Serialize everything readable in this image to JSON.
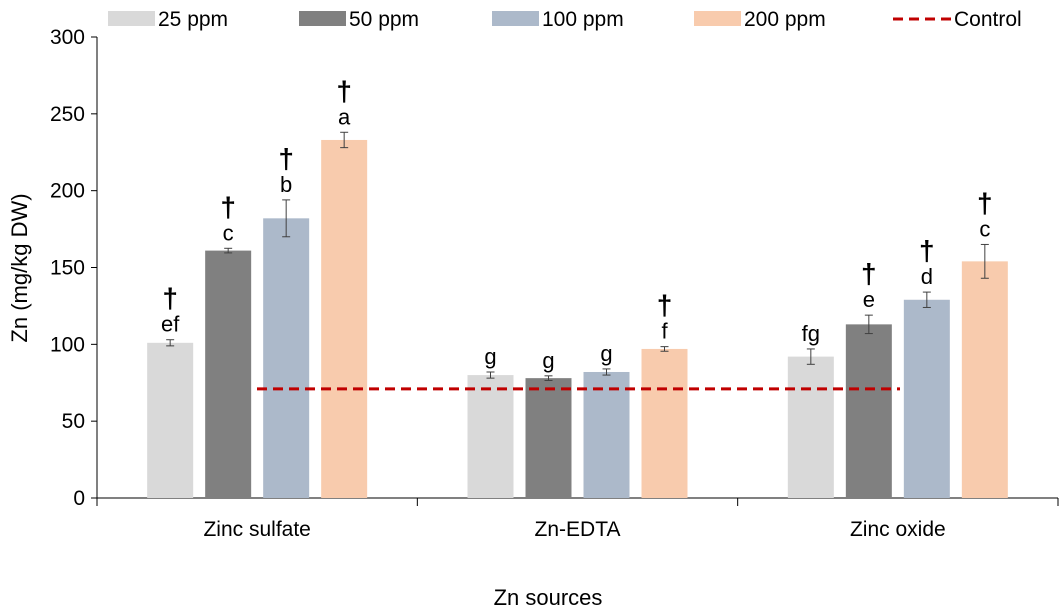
{
  "chart_data": {
    "type": "bar",
    "title": "",
    "xlabel": "Zn sources",
    "ylabel": "Zn (mg/kg DW)",
    "ylim": [
      0,
      300
    ],
    "yticks": [
      0,
      50,
      100,
      150,
      200,
      250,
      300
    ],
    "categories": [
      "Zinc sulfate",
      "Zn-EDTA",
      "Zinc oxide"
    ],
    "series": [
      {
        "name": "25 ppm",
        "color": "#d9d9d9",
        "values": [
          101,
          80,
          92
        ],
        "errors": [
          2,
          2,
          5
        ],
        "letters": [
          "ef",
          "g",
          "fg"
        ],
        "dagger": [
          true,
          false,
          false
        ]
      },
      {
        "name": "50 ppm",
        "color": "#808080",
        "values": [
          161,
          78,
          113
        ],
        "errors": [
          1.5,
          1.5,
          6
        ],
        "letters": [
          "c",
          "g",
          "e"
        ],
        "dagger": [
          true,
          false,
          true
        ]
      },
      {
        "name": "100 ppm",
        "color": "#acb9ca",
        "values": [
          182,
          82,
          129
        ],
        "errors": [
          12,
          2,
          5
        ],
        "letters": [
          "b",
          "g",
          "d"
        ],
        "dagger": [
          true,
          false,
          true
        ]
      },
      {
        "name": "200 ppm",
        "color": "#f8cbad",
        "values": [
          233,
          97,
          154
        ],
        "errors": [
          5,
          1.5,
          11
        ],
        "letters": [
          "a",
          "f",
          "c"
        ],
        "dagger": [
          true,
          true,
          true
        ]
      }
    ],
    "control": {
      "name": "Control",
      "value": 71,
      "color": "#c00000",
      "style": "dashed"
    },
    "dagger_symbol": "†",
    "legend_position": "top",
    "grid": false
  }
}
